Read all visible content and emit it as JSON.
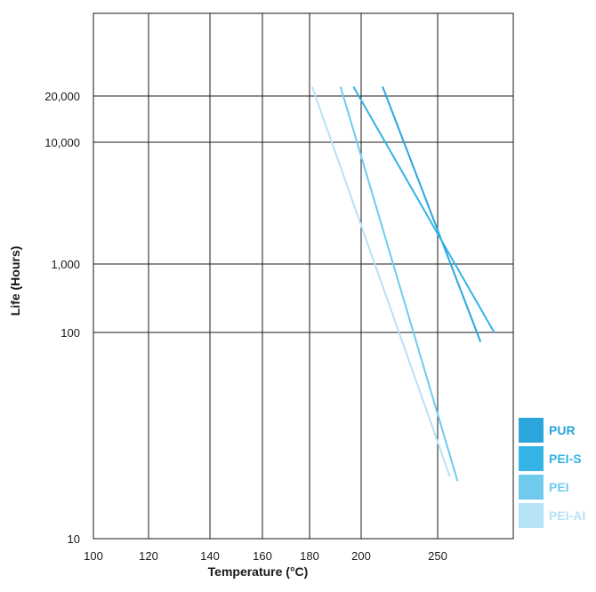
{
  "chart_data": {
    "type": "line",
    "title": "",
    "xlabel": "Temperature (°C)",
    "ylabel": "Life (Hours)",
    "x_ticks": [
      100,
      120,
      140,
      160,
      180,
      200,
      250
    ],
    "x_tick_labels": [
      "100",
      "120",
      "140",
      "160",
      "180",
      "200",
      "250"
    ],
    "y_ticks": [
      10,
      100,
      1000,
      10000,
      20000
    ],
    "y_tick_labels": [
      "10",
      "100",
      "1,000",
      "10,000",
      "20,000"
    ],
    "grid": true,
    "legend_position": "right",
    "series": [
      {
        "name": "PUR",
        "color": "#2aa6dc",
        "points": [
          [
            214,
            23000
          ],
          [
            278,
            90
          ]
        ]
      },
      {
        "name": "PEI-S",
        "color": "#33b3e6",
        "points": [
          [
            197,
            23000
          ],
          [
            287,
            100
          ]
        ]
      },
      {
        "name": "PEI",
        "color": "#6fcaee",
        "points": [
          [
            192,
            23000
          ],
          [
            263,
            19
          ]
        ]
      },
      {
        "name": "PEI-AI",
        "color": "#b6e2f5",
        "points": [
          [
            181,
            23000
          ],
          [
            258,
            20
          ]
        ]
      }
    ]
  }
}
